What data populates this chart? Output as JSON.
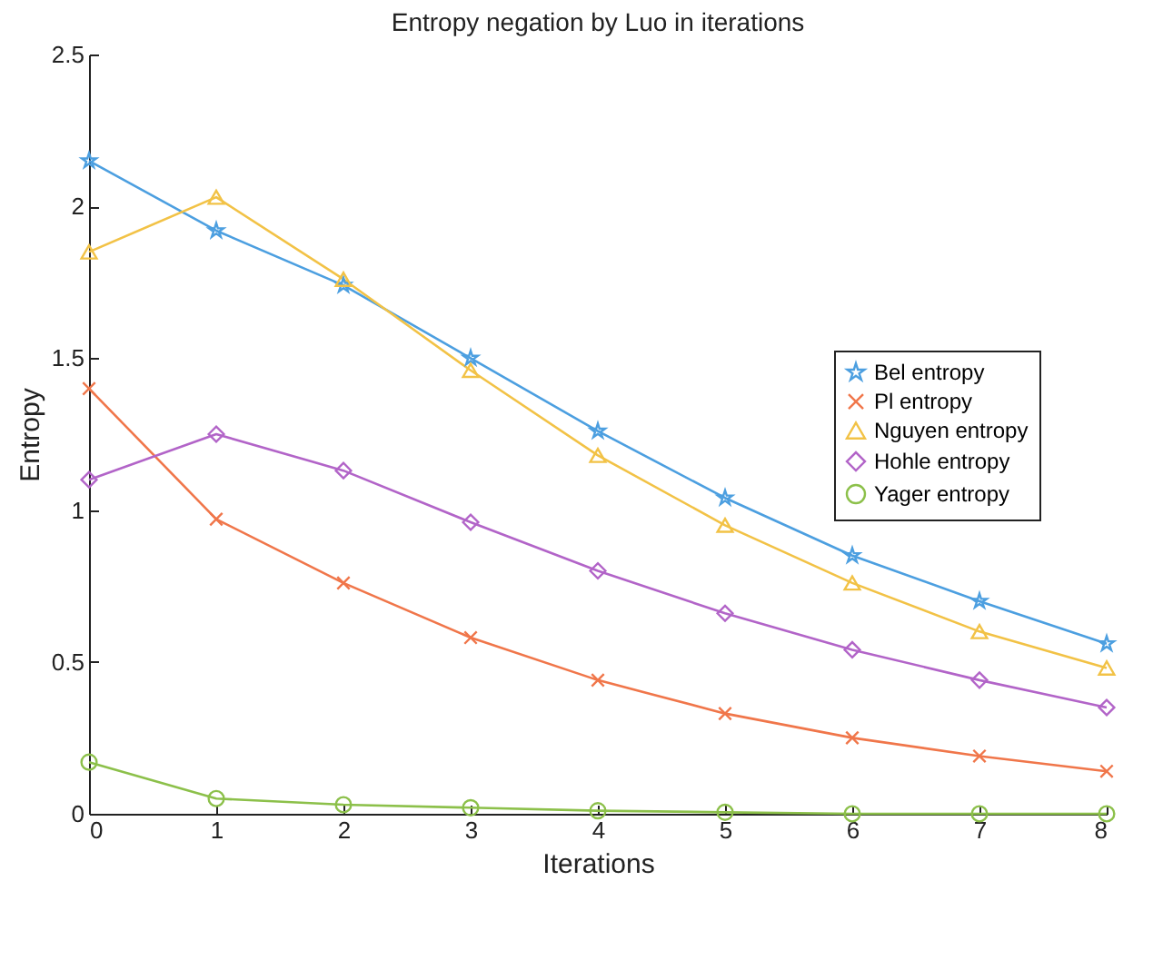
{
  "chart_data": {
    "type": "line",
    "title": "Entropy negation by Luo in iterations",
    "xlabel": "Iterations",
    "ylabel": "Entropy",
    "x": [
      0,
      1,
      2,
      3,
      4,
      5,
      6,
      7,
      8
    ],
    "series": [
      {
        "name": "Bel entropy",
        "color": "#4c9fe0",
        "marker": "star",
        "values": [
          2.15,
          1.92,
          1.74,
          1.5,
          1.26,
          1.04,
          0.85,
          0.7,
          0.56
        ]
      },
      {
        "name": "Pl entropy",
        "color": "#f0764a",
        "marker": "cross",
        "values": [
          1.4,
          0.97,
          0.76,
          0.58,
          0.44,
          0.33,
          0.25,
          0.19,
          0.14
        ]
      },
      {
        "name": "Nguyen entropy",
        "color": "#f2c246",
        "marker": "triangle",
        "values": [
          1.85,
          2.03,
          1.76,
          1.46,
          1.18,
          0.95,
          0.76,
          0.6,
          0.48
        ]
      },
      {
        "name": "Hohle entropy",
        "color": "#b264c8",
        "marker": "diamond",
        "values": [
          1.1,
          1.25,
          1.13,
          0.96,
          0.8,
          0.66,
          0.54,
          0.44,
          0.35
        ]
      },
      {
        "name": "Yager entropy",
        "color": "#8cc04a",
        "marker": "circle",
        "values": [
          0.17,
          0.05,
          0.03,
          0.02,
          0.01,
          0.005,
          0,
          0,
          0
        ]
      }
    ],
    "xlim": [
      0,
      8
    ],
    "xticks": [
      0,
      1,
      2,
      3,
      4,
      5,
      6,
      7,
      8
    ],
    "ylim": [
      0,
      2.5
    ],
    "yticks": [
      0,
      0.5,
      1,
      1.5,
      2,
      2.5
    ],
    "grid": false,
    "legend": "right",
    "line_style": "solid"
  }
}
